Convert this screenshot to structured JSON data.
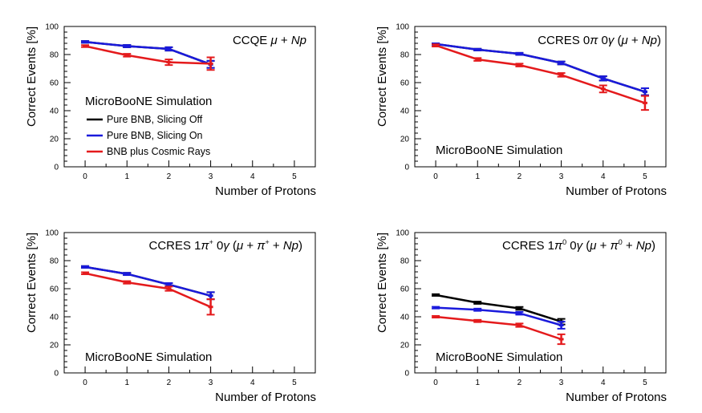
{
  "figure": {
    "watermark": "MicroBooNE Simulation"
  },
  "colors": {
    "slicing_off": "#000000",
    "slicing_on": "#1a1adc",
    "cosmic": "#e41a1c",
    "frame": "#000000"
  },
  "chart_data": [
    {
      "type": "line",
      "title": "CCQE μ + Np",
      "title_parts": {
        "pre": "CCQE ",
        "mu": "μ",
        "post": " + ",
        "np": "Np"
      },
      "xlabel": "Number of Protons",
      "ylabel": "Correct Events [%]",
      "xlim": [
        -0.5,
        5.5
      ],
      "ylim": [
        0,
        100
      ],
      "x_ticks": [
        0,
        1,
        2,
        3,
        4,
        5
      ],
      "y_ticks": [
        0,
        20,
        40,
        60,
        80,
        100
      ],
      "annotation": "MicroBooNE Simulation",
      "legend": {
        "position": "left-middle",
        "entries": [
          {
            "label": "Pure BNB, Slicing Off",
            "color_key": "slicing_off"
          },
          {
            "label": "Pure BNB, Slicing On",
            "color_key": "slicing_on"
          },
          {
            "label": "BNB plus Cosmic Rays",
            "color_key": "cosmic"
          }
        ]
      },
      "series": [
        {
          "name": "Pure BNB, Slicing Off",
          "color_key": "slicing_off",
          "x": [
            0,
            1,
            2,
            3
          ],
          "y": [
            89,
            86,
            84,
            73
          ],
          "err": [
            0.6,
            0.8,
            1.2,
            2.5
          ]
        },
        {
          "name": "Pure BNB, Slicing On",
          "color_key": "slicing_on",
          "x": [
            0,
            1,
            2,
            3
          ],
          "y": [
            89,
            86,
            84,
            73
          ],
          "err": [
            0.6,
            0.8,
            1.2,
            2.5
          ]
        },
        {
          "name": "BNB plus Cosmic Rays",
          "color_key": "cosmic",
          "x": [
            0,
            1,
            2,
            3
          ],
          "y": [
            86,
            79.5,
            74.5,
            73.5
          ],
          "err": [
            0.7,
            1.0,
            2.0,
            4.5
          ]
        }
      ]
    },
    {
      "type": "line",
      "title": "CCRES 0π 0γ (μ + Np)",
      "title_parts": {
        "pre": "CCRES 0",
        "pi": "π",
        "mid": " 0",
        "gamma": "γ",
        "open": " (",
        "mu": "μ",
        "plus": " + ",
        "np": "Np",
        "close": ")"
      },
      "xlabel": "Number of Protons",
      "ylabel": "Correct Events [%]",
      "xlim": [
        -0.5,
        5.5
      ],
      "ylim": [
        0,
        100
      ],
      "x_ticks": [
        0,
        1,
        2,
        3,
        4,
        5
      ],
      "y_ticks": [
        0,
        20,
        40,
        60,
        80,
        100
      ],
      "annotation": "MicroBooNE Simulation",
      "series": [
        {
          "name": "Pure BNB, Slicing Off",
          "color_key": "slicing_off",
          "x": [
            0,
            1,
            2,
            3,
            4,
            5
          ],
          "y": [
            87.5,
            83.5,
            80.5,
            74,
            63,
            53.5
          ],
          "err": [
            0.5,
            0.6,
            0.7,
            1.0,
            1.5,
            2.5
          ]
        },
        {
          "name": "Pure BNB, Slicing On",
          "color_key": "slicing_on",
          "x": [
            0,
            1,
            2,
            3,
            4,
            5
          ],
          "y": [
            87.5,
            83.5,
            80.5,
            74,
            63,
            53.5
          ],
          "err": [
            0.5,
            0.6,
            0.7,
            1.0,
            1.5,
            2.5
          ]
        },
        {
          "name": "BNB plus Cosmic Rays",
          "color_key": "cosmic",
          "x": [
            0,
            1,
            2,
            3,
            4,
            5
          ],
          "y": [
            86.5,
            76.5,
            72.5,
            65.5,
            55.5,
            45.5
          ],
          "err": [
            0.8,
            1.0,
            1.0,
            1.3,
            2.5,
            5.0
          ]
        }
      ]
    },
    {
      "type": "line",
      "title": "CCRES 1π+ 0γ (μ + π+ + Np)",
      "title_parts": {
        "pre": "CCRES 1",
        "pi": "π",
        "sup": "+",
        "mid": " 0",
        "gamma": "γ",
        "open": " (",
        "mu": "μ",
        "plus1": " + ",
        "pi2": "π",
        "sup2": "+",
        "plus2": " + ",
        "np": "Np",
        "close": ")"
      },
      "xlabel": "Number of Protons",
      "ylabel": "Correct Events [%]",
      "xlim": [
        -0.5,
        5.5
      ],
      "ylim": [
        0,
        100
      ],
      "x_ticks": [
        0,
        1,
        2,
        3,
        4,
        5
      ],
      "y_ticks": [
        0,
        20,
        40,
        60,
        80,
        100
      ],
      "annotation": "MicroBooNE Simulation",
      "series": [
        {
          "name": "Pure BNB, Slicing Off",
          "color_key": "slicing_off",
          "x": [
            0,
            1,
            2,
            3
          ],
          "y": [
            75.5,
            70.5,
            63,
            55
          ],
          "err": [
            0.6,
            0.8,
            1.0,
            2.5
          ]
        },
        {
          "name": "Pure BNB, Slicing On",
          "color_key": "slicing_on",
          "x": [
            0,
            1,
            2,
            3
          ],
          "y": [
            75.5,
            70.5,
            63,
            55
          ],
          "err": [
            0.6,
            0.8,
            1.0,
            2.5
          ]
        },
        {
          "name": "BNB plus Cosmic Rays",
          "color_key": "cosmic",
          "x": [
            0,
            1,
            2,
            3
          ],
          "y": [
            71,
            64.5,
            60,
            47
          ],
          "err": [
            0.7,
            0.9,
            1.5,
            5.5
          ]
        }
      ]
    },
    {
      "type": "line",
      "title": "CCRES 1π0 0γ (μ + π0 + Np)",
      "title_parts": {
        "pre": "CCRES 1",
        "pi": "π",
        "sup": "0",
        "mid": " 0",
        "gamma": "γ",
        "open": " (",
        "mu": "μ",
        "plus1": " + ",
        "pi2": "π",
        "sup2": "0",
        "plus2": " + ",
        "np": "Np",
        "close": ")"
      },
      "xlabel": "Number of Protons",
      "ylabel": "Correct Events [%]",
      "xlim": [
        -0.5,
        5.5
      ],
      "ylim": [
        0,
        100
      ],
      "x_ticks": [
        0,
        1,
        2,
        3,
        4,
        5
      ],
      "y_ticks": [
        0,
        20,
        40,
        60,
        80,
        100
      ],
      "annotation": "MicroBooNE Simulation",
      "series": [
        {
          "name": "Pure BNB, Slicing Off",
          "color_key": "slicing_off",
          "x": [
            0,
            1,
            2,
            3
          ],
          "y": [
            55.5,
            50,
            46,
            36.5
          ],
          "err": [
            0.6,
            0.8,
            1.0,
            2.0
          ]
        },
        {
          "name": "Pure BNB, Slicing On",
          "color_key": "slicing_on",
          "x": [
            0,
            1,
            2,
            3
          ],
          "y": [
            46.5,
            45,
            42.5,
            34
          ],
          "err": [
            0.6,
            0.8,
            1.0,
            2.5
          ]
        },
        {
          "name": "BNB plus Cosmic Rays",
          "color_key": "cosmic",
          "x": [
            0,
            1,
            2,
            3
          ],
          "y": [
            40,
            37,
            34,
            24
          ],
          "err": [
            0.6,
            0.8,
            1.2,
            3.5
          ]
        }
      ]
    }
  ]
}
